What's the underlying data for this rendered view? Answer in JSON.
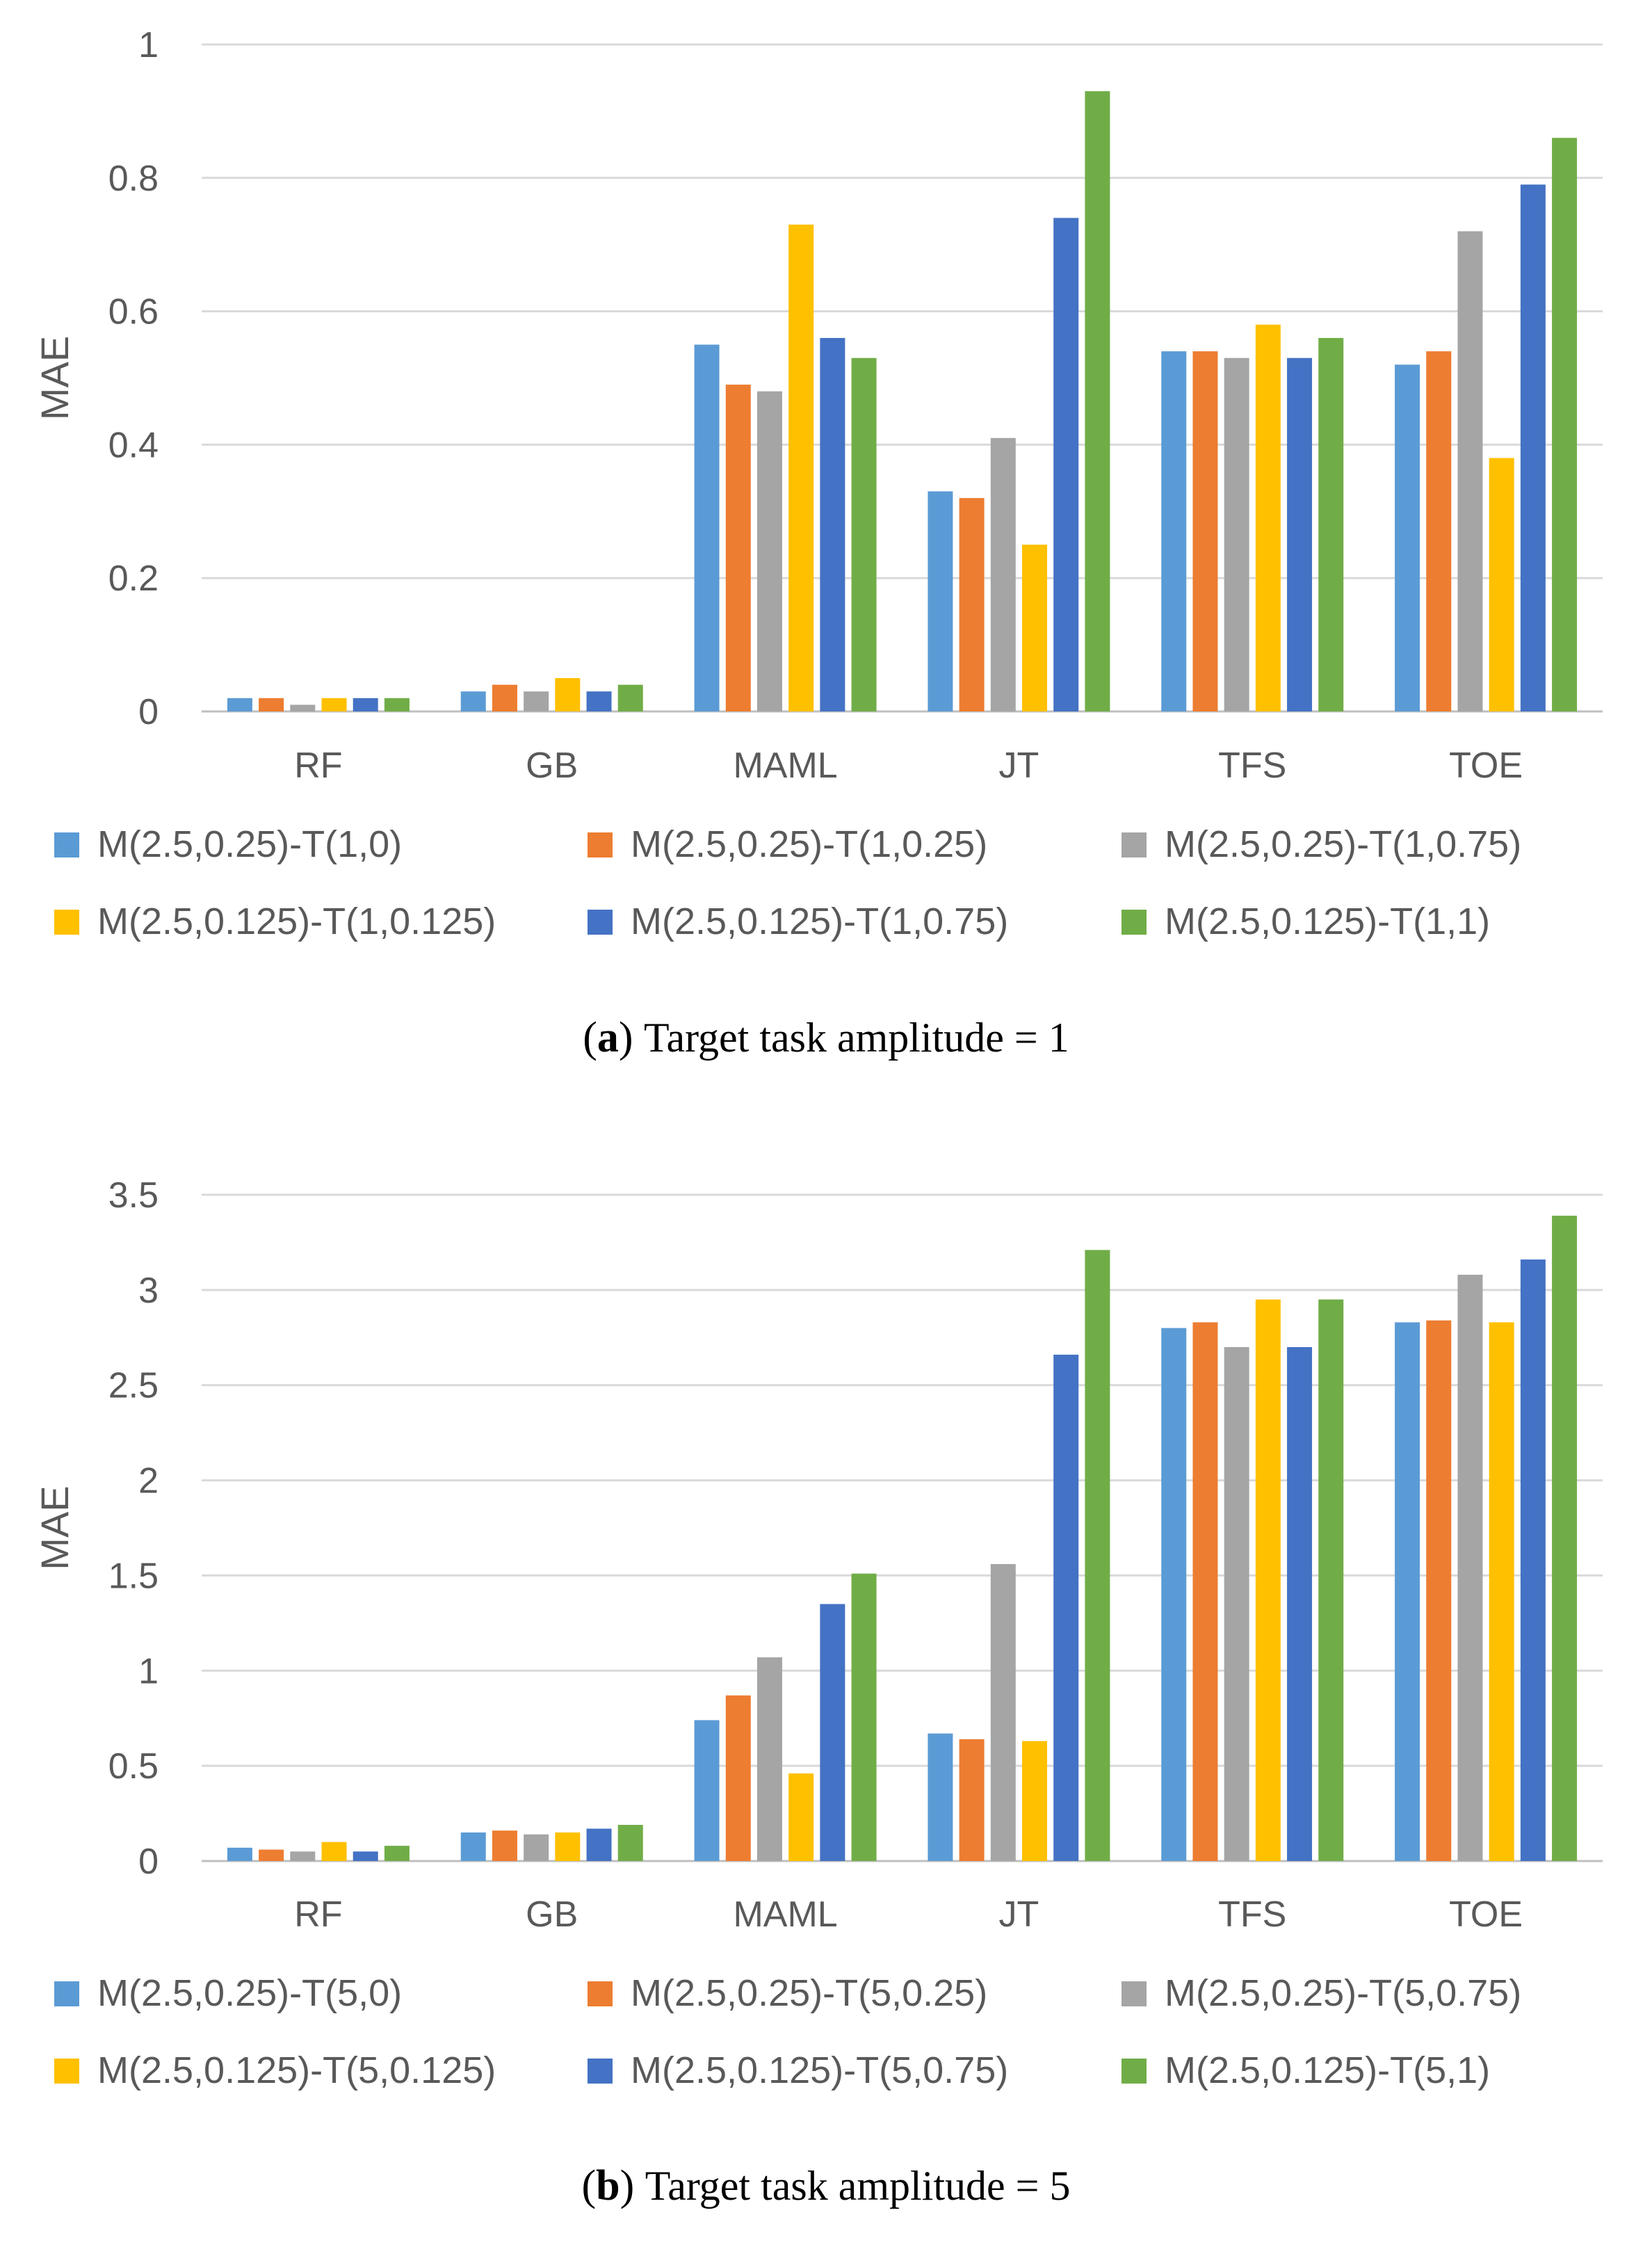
{
  "chart_data": [
    {
      "type": "bar",
      "panel_letter": "a",
      "caption": "Target task amplitude = 1",
      "ylabel": "MAE",
      "xlabel": "",
      "ylim": [
        0,
        1
      ],
      "y_ticks": [
        "0",
        "0.2",
        "0.4",
        "0.6",
        "0.8",
        "1"
      ],
      "y_tick_values": [
        0,
        0.2,
        0.4,
        0.6,
        0.8,
        1
      ],
      "grid": true,
      "legend_position": "bottom",
      "categories": [
        "RF",
        "GB",
        "MAML",
        "JT",
        "TFS",
        "TOE"
      ],
      "series": [
        {
          "name": "M(2.5,0.25)-T(1,0)",
          "color": "#5b9bd5",
          "values": [
            0.02,
            0.03,
            0.55,
            0.33,
            0.54,
            0.52
          ]
        },
        {
          "name": "M(2.5,0.25)-T(1,0.25)",
          "color": "#ed7d31",
          "values": [
            0.02,
            0.04,
            0.49,
            0.32,
            0.54,
            0.54
          ]
        },
        {
          "name": "M(2.5,0.25)-T(1,0.75)",
          "color": "#a5a5a5",
          "values": [
            0.01,
            0.03,
            0.48,
            0.41,
            0.53,
            0.72
          ]
        },
        {
          "name": "M(2.5,0.125)-T(1,0.125)",
          "color": "#ffc000",
          "values": [
            0.02,
            0.05,
            0.73,
            0.25,
            0.58,
            0.38
          ]
        },
        {
          "name": "M(2.5,0.125)-T(1,0.75)",
          "color": "#4472c4",
          "values": [
            0.02,
            0.03,
            0.56,
            0.74,
            0.53,
            0.79
          ]
        },
        {
          "name": "M(2.5,0.125)-T(1,1)",
          "color": "#70ad47",
          "values": [
            0.02,
            0.04,
            0.53,
            0.93,
            0.56,
            0.86
          ]
        }
      ]
    },
    {
      "type": "bar",
      "panel_letter": "b",
      "caption": "Target task amplitude = 5",
      "ylabel": "MAE",
      "xlabel": "",
      "ylim": [
        0,
        3.5
      ],
      "y_ticks": [
        "0",
        "0.5",
        "1",
        "1.5",
        "2",
        "2.5",
        "3",
        "3.5"
      ],
      "y_tick_values": [
        0,
        0.5,
        1,
        1.5,
        2,
        2.5,
        3,
        3.5
      ],
      "grid": true,
      "legend_position": "bottom",
      "categories": [
        "RF",
        "GB",
        "MAML",
        "JT",
        "TFS",
        "TOE"
      ],
      "series": [
        {
          "name": "M(2.5,0.25)-T(5,0)",
          "color": "#5b9bd5",
          "values": [
            0.07,
            0.15,
            0.74,
            0.67,
            2.8,
            2.83
          ]
        },
        {
          "name": "M(2.5,0.25)-T(5,0.25)",
          "color": "#ed7d31",
          "values": [
            0.06,
            0.16,
            0.87,
            0.64,
            2.83,
            2.84
          ]
        },
        {
          "name": "M(2.5,0.25)-T(5,0.75)",
          "color": "#a5a5a5",
          "values": [
            0.05,
            0.14,
            1.07,
            1.56,
            2.7,
            3.08
          ]
        },
        {
          "name": "M(2.5,0.125)-T(5,0.125)",
          "color": "#ffc000",
          "values": [
            0.1,
            0.15,
            0.46,
            0.63,
            2.95,
            2.83
          ]
        },
        {
          "name": "M(2.5,0.125)-T(5,0.75)",
          "color": "#4472c4",
          "values": [
            0.05,
            0.17,
            1.35,
            2.66,
            2.7,
            3.16
          ]
        },
        {
          "name": "M(2.5,0.125)-T(5,1)",
          "color": "#70ad47",
          "values": [
            0.08,
            0.19,
            1.51,
            3.21,
            2.95,
            3.39
          ]
        }
      ]
    }
  ]
}
